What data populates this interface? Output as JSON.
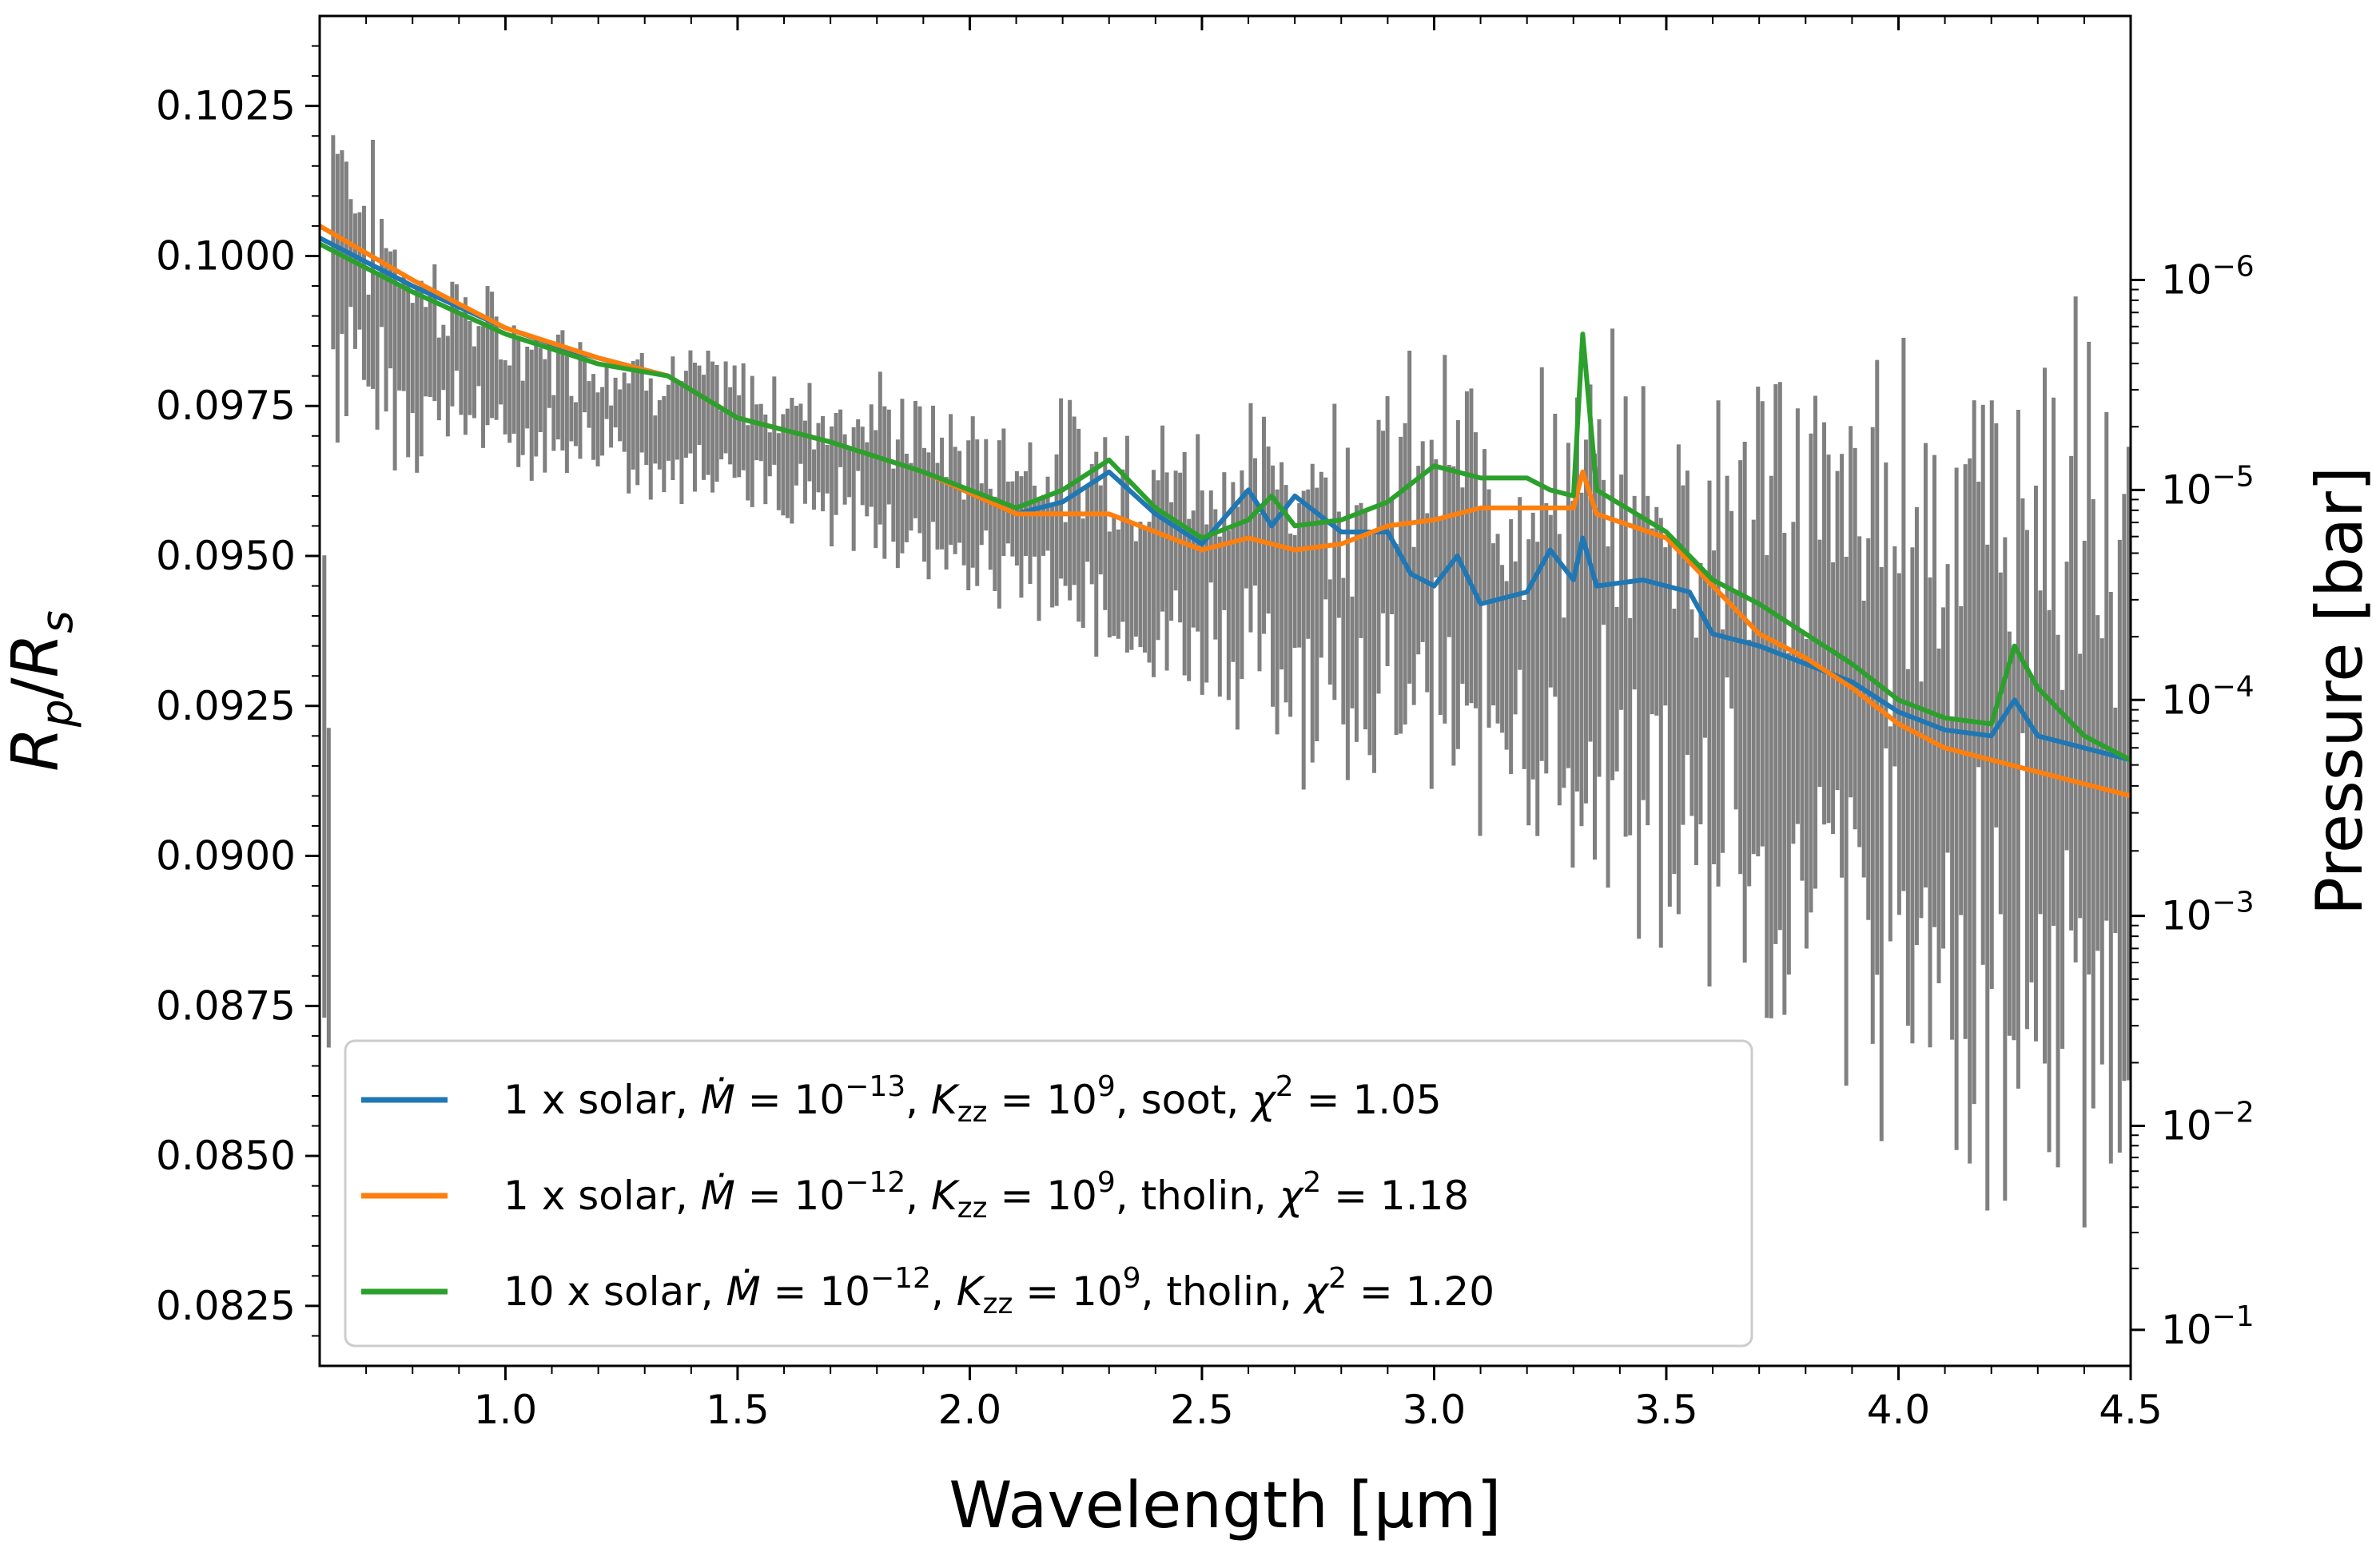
{
  "chart_data": {
    "type": "line",
    "title": "",
    "xlabel": "Wavelength [μm]",
    "ylabel": "R_p/R_s",
    "ylabel_right": "Pressure [bar]",
    "xlim": [
      0.6,
      4.5
    ],
    "ylim": [
      0.0815,
      0.104
    ],
    "xticks": [
      "1.0",
      "1.5",
      "2.0",
      "2.5",
      "3.0",
      "3.5",
      "4.0",
      "4.5"
    ],
    "xtick_values": [
      1.0,
      1.5,
      2.0,
      2.5,
      3.0,
      3.5,
      4.0,
      4.5
    ],
    "yticks": [
      "0.0825",
      "0.0850",
      "0.0875",
      "0.0900",
      "0.0925",
      "0.0950",
      "0.0975",
      "0.1000",
      "0.1025"
    ],
    "ytick_values": [
      0.0825,
      0.085,
      0.0875,
      0.09,
      0.0925,
      0.095,
      0.0975,
      0.1,
      0.1025
    ],
    "right_ticks": [
      {
        "value": 0.1,
        "base": "10",
        "exp": "−1",
        "rp": 0.0821
      },
      {
        "value": 0.01,
        "base": "10",
        "exp": "−2",
        "rp": 0.0855
      },
      {
        "value": 0.001,
        "base": "10",
        "exp": "−3",
        "rp": 0.089
      },
      {
        "value": 0.0001,
        "base": "10",
        "exp": "−4",
        "rp": 0.0926
      },
      {
        "value": 1e-05,
        "base": "10",
        "exp": "−5",
        "rp": 0.0961
      },
      {
        "value": 1e-06,
        "base": "10",
        "exp": "−6",
        "rp": 0.0996
      }
    ],
    "observations": {
      "name": "data",
      "color": "#808080",
      "description_points": [
        [
          0.62,
          0.1005,
          0.0025
        ],
        [
          0.7,
          0.0992,
          0.002
        ],
        [
          0.8,
          0.0985,
          0.0015
        ],
        [
          0.9,
          0.0983,
          0.0012
        ],
        [
          1.0,
          0.0978,
          0.001
        ],
        [
          1.2,
          0.0975,
          0.001
        ],
        [
          1.4,
          0.0972,
          0.001
        ],
        [
          1.6,
          0.0968,
          0.001
        ],
        [
          1.8,
          0.0964,
          0.0012
        ],
        [
          2.0,
          0.0958,
          0.0012
        ],
        [
          2.2,
          0.0955,
          0.0015
        ],
        [
          2.4,
          0.095,
          0.0018
        ],
        [
          2.6,
          0.0948,
          0.002
        ],
        [
          2.8,
          0.0945,
          0.0025
        ],
        [
          3.0,
          0.0945,
          0.0028
        ],
        [
          3.2,
          0.094,
          0.003
        ],
        [
          3.4,
          0.0935,
          0.0035
        ],
        [
          3.6,
          0.093,
          0.004
        ],
        [
          3.8,
          0.0925,
          0.0045
        ],
        [
          4.0,
          0.092,
          0.005
        ],
        [
          4.2,
          0.0918,
          0.0055
        ],
        [
          4.4,
          0.0915,
          0.0055
        ],
        [
          4.5,
          0.0912,
          0.005
        ]
      ]
    },
    "series": [
      {
        "name": "1 x solar, Mdot=10^-13, Kzz=10^9, soot, chi2=1.05",
        "color": "#1f77b4",
        "points": [
          [
            0.6,
            0.1003
          ],
          [
            0.8,
            0.0995
          ],
          [
            1.0,
            0.0988
          ],
          [
            1.15,
            0.0984
          ],
          [
            1.35,
            0.098
          ],
          [
            1.5,
            0.0973
          ],
          [
            1.7,
            0.0969
          ],
          [
            1.9,
            0.0964
          ],
          [
            2.1,
            0.0957
          ],
          [
            2.2,
            0.0959
          ],
          [
            2.3,
            0.0964
          ],
          [
            2.4,
            0.0957
          ],
          [
            2.5,
            0.0952
          ],
          [
            2.6,
            0.0961
          ],
          [
            2.65,
            0.0955
          ],
          [
            2.7,
            0.096
          ],
          [
            2.8,
            0.0954
          ],
          [
            2.9,
            0.0954
          ],
          [
            2.95,
            0.0947
          ],
          [
            3.0,
            0.0945
          ],
          [
            3.05,
            0.095
          ],
          [
            3.1,
            0.0942
          ],
          [
            3.2,
            0.0944
          ],
          [
            3.25,
            0.0951
          ],
          [
            3.3,
            0.0946
          ],
          [
            3.32,
            0.0953
          ],
          [
            3.35,
            0.0945
          ],
          [
            3.45,
            0.0946
          ],
          [
            3.55,
            0.0944
          ],
          [
            3.6,
            0.0937
          ],
          [
            3.7,
            0.0935
          ],
          [
            3.8,
            0.0932
          ],
          [
            3.9,
            0.0929
          ],
          [
            4.0,
            0.0924
          ],
          [
            4.1,
            0.0921
          ],
          [
            4.2,
            0.092
          ],
          [
            4.25,
            0.0926
          ],
          [
            4.3,
            0.092
          ],
          [
            4.4,
            0.0918
          ],
          [
            4.5,
            0.0916
          ]
        ]
      },
      {
        "name": "1 x solar, Mdot=10^-12, Kzz=10^9, tholin, chi2=1.18",
        "color": "#ff7f0e",
        "points": [
          [
            0.6,
            0.1005
          ],
          [
            0.8,
            0.0996
          ],
          [
            1.0,
            0.0988
          ],
          [
            1.2,
            0.0983
          ],
          [
            1.35,
            0.098
          ],
          [
            1.5,
            0.0973
          ],
          [
            1.7,
            0.0969
          ],
          [
            1.9,
            0.0964
          ],
          [
            2.1,
            0.0957
          ],
          [
            2.3,
            0.0957
          ],
          [
            2.5,
            0.0951
          ],
          [
            2.6,
            0.0953
          ],
          [
            2.7,
            0.0951
          ],
          [
            2.8,
            0.0952
          ],
          [
            2.9,
            0.0955
          ],
          [
            3.0,
            0.0956
          ],
          [
            3.1,
            0.0958
          ],
          [
            3.2,
            0.0958
          ],
          [
            3.3,
            0.0958
          ],
          [
            3.32,
            0.0964
          ],
          [
            3.35,
            0.0957
          ],
          [
            3.5,
            0.0953
          ],
          [
            3.6,
            0.0945
          ],
          [
            3.7,
            0.0937
          ],
          [
            3.8,
            0.0933
          ],
          [
            3.9,
            0.0928
          ],
          [
            4.0,
            0.0922
          ],
          [
            4.1,
            0.0918
          ],
          [
            4.2,
            0.0916
          ],
          [
            4.3,
            0.0914
          ],
          [
            4.4,
            0.0912
          ],
          [
            4.5,
            0.091
          ]
        ]
      },
      {
        "name": "10 x solar, Mdot=10^-12, Kzz=10^9, tholin, chi2=1.20",
        "color": "#2ca02c",
        "points": [
          [
            0.6,
            0.1002
          ],
          [
            0.8,
            0.0994
          ],
          [
            1.0,
            0.0987
          ],
          [
            1.2,
            0.0982
          ],
          [
            1.35,
            0.098
          ],
          [
            1.5,
            0.0973
          ],
          [
            1.7,
            0.0969
          ],
          [
            1.9,
            0.0964
          ],
          [
            2.1,
            0.0958
          ],
          [
            2.2,
            0.0961
          ],
          [
            2.3,
            0.0966
          ],
          [
            2.4,
            0.0958
          ],
          [
            2.5,
            0.0953
          ],
          [
            2.6,
            0.0956
          ],
          [
            2.65,
            0.096
          ],
          [
            2.7,
            0.0955
          ],
          [
            2.8,
            0.0956
          ],
          [
            2.9,
            0.0959
          ],
          [
            3.0,
            0.0965
          ],
          [
            3.1,
            0.0963
          ],
          [
            3.2,
            0.0963
          ],
          [
            3.25,
            0.0961
          ],
          [
            3.3,
            0.096
          ],
          [
            3.32,
            0.0987
          ],
          [
            3.35,
            0.0961
          ],
          [
            3.5,
            0.0954
          ],
          [
            3.6,
            0.0946
          ],
          [
            3.7,
            0.0942
          ],
          [
            3.8,
            0.0937
          ],
          [
            3.9,
            0.0932
          ],
          [
            4.0,
            0.0926
          ],
          [
            4.1,
            0.0923
          ],
          [
            4.2,
            0.0922
          ],
          [
            4.25,
            0.0935
          ],
          [
            4.3,
            0.0928
          ],
          [
            4.4,
            0.092
          ],
          [
            4.5,
            0.0916
          ]
        ]
      }
    ],
    "legend": {
      "position": "lower-left",
      "entries": [
        {
          "prefix": "1 x solar, ",
          "mexp": "−13",
          "kexp": "9",
          "material": "soot",
          "chi": "1.05"
        },
        {
          "prefix": "1 x solar, ",
          "mexp": "−12",
          "kexp": "9",
          "material": "tholin",
          "chi": "1.18"
        },
        {
          "prefix": "10 x solar, ",
          "mexp": "−12",
          "kexp": "9",
          "material": "tholin",
          "chi": "1.20"
        }
      ]
    }
  }
}
